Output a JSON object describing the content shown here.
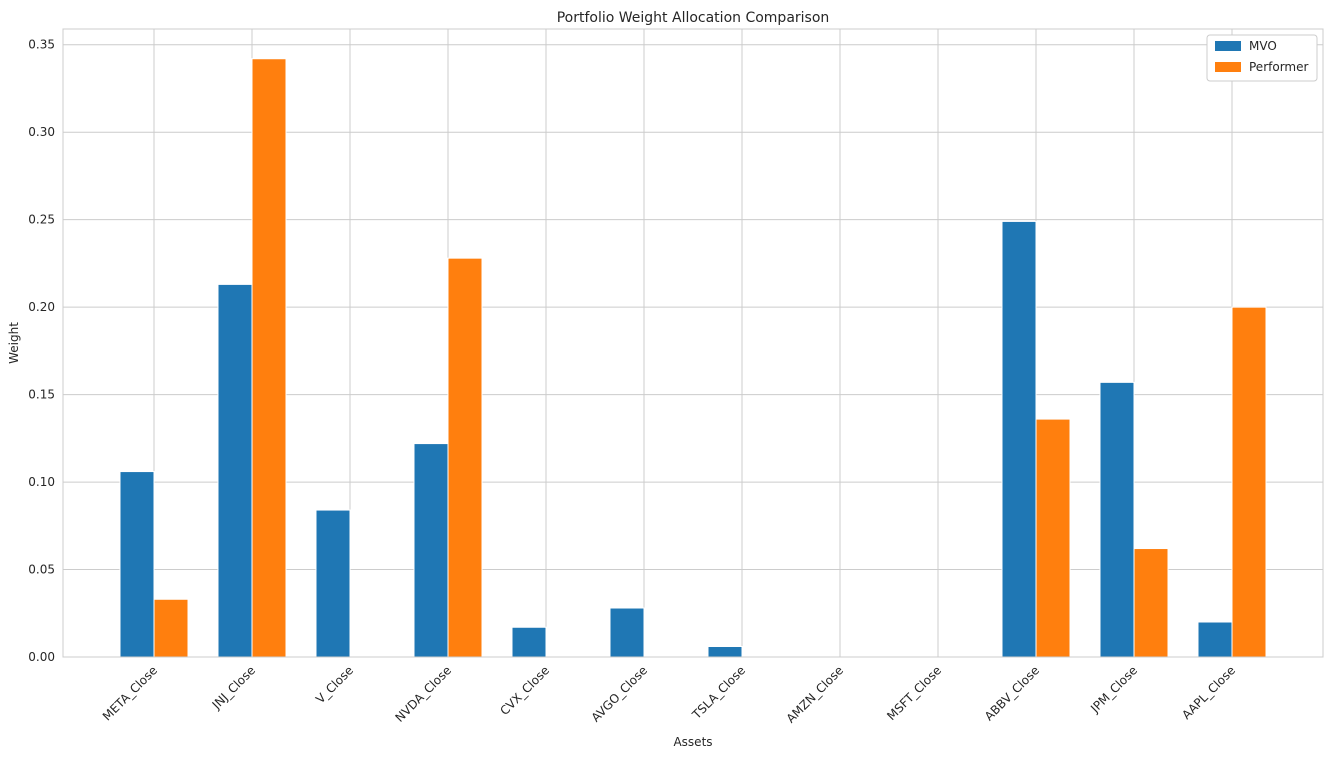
{
  "chart_data": {
    "type": "bar",
    "title": "Portfolio Weight Allocation Comparison",
    "xlabel": "Assets",
    "ylabel": "Weight",
    "ylim": [
      0,
      0.359
    ],
    "yticks": [
      0.0,
      0.05,
      0.1,
      0.15,
      0.2,
      0.25,
      0.3,
      0.35
    ],
    "ytick_labels": [
      "0.00",
      "0.05",
      "0.10",
      "0.15",
      "0.20",
      "0.25",
      "0.30",
      "0.35"
    ],
    "grid": true,
    "legend_position": "top-right",
    "categories": [
      "META_Close",
      "JNJ_Close",
      "V_Close",
      "NVDA_Close",
      "CVX_Close",
      "AVGO_Close",
      "TSLA_Close",
      "AMZN_Close",
      "MSFT_Close",
      "ABBV_Close",
      "JPM_Close",
      "AAPL_Close"
    ],
    "series": [
      {
        "name": "MVO",
        "color": "#1f77b4",
        "values": [
          0.106,
          0.213,
          0.084,
          0.122,
          0.017,
          0.028,
          0.006,
          0.0,
          0.0,
          0.249,
          0.157,
          0.02
        ]
      },
      {
        "name": "Performer",
        "color": "#ff7f0e",
        "values": [
          0.033,
          0.342,
          0.0,
          0.228,
          0.0,
          0.0,
          0.0,
          0.0,
          0.0,
          0.136,
          0.062,
          0.2
        ]
      }
    ]
  }
}
